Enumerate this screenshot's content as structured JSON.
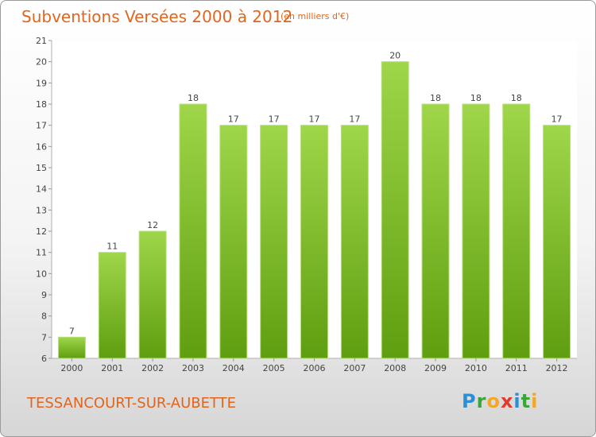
{
  "header": {
    "title": "Subventions Versées 2000 à 2012",
    "subtitle": "(en milliers d'€)"
  },
  "footer": {
    "commune": "TESSANCOURT-SUR-AUBETTE",
    "logo_letters": [
      "P",
      "r",
      "o",
      "x",
      "i",
      "t",
      "i"
    ],
    "logo_colors": [
      "#2a8fd6",
      "#3aa63a",
      "#f5a623",
      "#e23b2e",
      "#2a8fd6",
      "#3aa63a",
      "#f5a623"
    ]
  },
  "chart_data": {
    "type": "bar",
    "title": "Subventions Versées 2000 à 2012",
    "subtitle": "(en milliers d'€)",
    "categories": [
      "2000",
      "2001",
      "2002",
      "2003",
      "2004",
      "2005",
      "2006",
      "2007",
      "2008",
      "2009",
      "2010",
      "2011",
      "2012"
    ],
    "values": [
      7,
      11,
      12,
      18,
      17,
      17,
      17,
      17,
      20,
      18,
      18,
      18,
      17
    ],
    "ylim": [
      6,
      21
    ],
    "yticks": [
      6,
      7,
      8,
      9,
      10,
      11,
      12,
      13,
      14,
      15,
      16,
      17,
      18,
      19,
      20,
      21
    ],
    "grid": false,
    "data_labels": true,
    "bar_color": "#7fbf28"
  }
}
